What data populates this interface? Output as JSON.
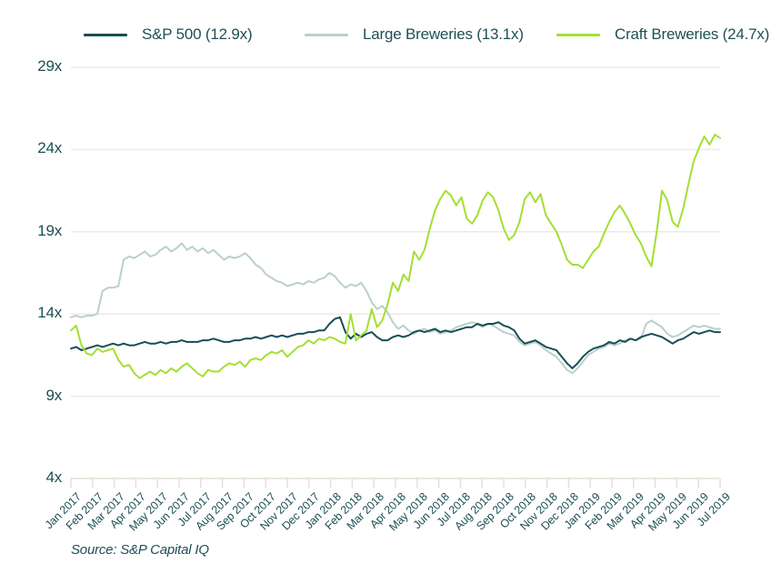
{
  "source": "Source: S&P Capital IQ",
  "colors": {
    "background": "#ffffff",
    "text": "#1d4f56",
    "sp500_line": "#164e57",
    "large_breweries_line": "#bad0cb",
    "craft_breweries_line": "#a3df33",
    "gridline": "#edeae4",
    "axis": "#e5dfd4"
  },
  "chart_data": {
    "type": "line",
    "title": "",
    "xlabel": "",
    "ylabel": "",
    "grid": "horizontal",
    "legend_position": "top",
    "ylim": [
      4,
      29
    ],
    "y_ticks": [
      {
        "value": 29,
        "label": "29x"
      },
      {
        "value": 24,
        "label": "24x"
      },
      {
        "value": 19,
        "label": "19x"
      },
      {
        "value": 14,
        "label": "14x"
      },
      {
        "value": 9,
        "label": "9x"
      },
      {
        "value": 4,
        "label": "4x"
      }
    ],
    "x_tick_labels": [
      "Jan 2017",
      "Feb 2017",
      "Mar 2017",
      "Apr 2017",
      "May 2017",
      "Jun 2017",
      "Jul 2017",
      "Aug 2017",
      "Sep 2017",
      "Oct 2017",
      "Nov 2017",
      "Dec 2017",
      "Jan 2018",
      "Feb 2018",
      "Mar 2018",
      "Apr 2018",
      "May 2018",
      "Jun 2018",
      "Jul 2018",
      "Aug 2018",
      "Sep 2018",
      "Oct 2018",
      "Nov 2018",
      "Dec 2018",
      "Jan 2019",
      "Feb 2019",
      "Mar 2019",
      "Apr 2019",
      "May 2019",
      "Jun 2019",
      "Jul 2019"
    ],
    "points_per_month": 4,
    "series": [
      {
        "name": "S&P 500 (12.9x)",
        "current_multiple": "12.9x",
        "color": "#164e57",
        "values": [
          11.9,
          12.0,
          11.8,
          11.9,
          12.0,
          12.1,
          12.0,
          12.1,
          12.2,
          12.1,
          12.2,
          12.1,
          12.1,
          12.2,
          12.3,
          12.2,
          12.2,
          12.3,
          12.2,
          12.3,
          12.3,
          12.4,
          12.3,
          12.3,
          12.3,
          12.4,
          12.4,
          12.5,
          12.4,
          12.3,
          12.3,
          12.4,
          12.4,
          12.5,
          12.5,
          12.6,
          12.5,
          12.6,
          12.7,
          12.6,
          12.7,
          12.6,
          12.7,
          12.8,
          12.8,
          12.9,
          12.9,
          13.0,
          13.0,
          13.4,
          13.7,
          13.8,
          12.9,
          12.5,
          12.8,
          12.6,
          12.8,
          12.9,
          12.6,
          12.4,
          12.4,
          12.6,
          12.7,
          12.6,
          12.7,
          12.9,
          13.0,
          12.9,
          13.0,
          13.1,
          12.9,
          13.0,
          12.9,
          13.0,
          13.1,
          13.2,
          13.2,
          13.4,
          13.3,
          13.4,
          13.4,
          13.5,
          13.3,
          13.2,
          13.0,
          12.5,
          12.2,
          12.3,
          12.4,
          12.2,
          12.0,
          11.9,
          11.8,
          11.4,
          11.0,
          10.7,
          11.0,
          11.4,
          11.7,
          11.9,
          12.0,
          12.1,
          12.3,
          12.2,
          12.4,
          12.3,
          12.5,
          12.4,
          12.6,
          12.7,
          12.8,
          12.7,
          12.6,
          12.4,
          12.2,
          12.4,
          12.5,
          12.7,
          12.9,
          12.8,
          12.9,
          13.0,
          12.9,
          12.9
        ]
      },
      {
        "name": "Large Breweries (13.1x)",
        "current_multiple": "13.1x",
        "color": "#bad0cb",
        "values": [
          13.8,
          13.9,
          13.8,
          13.9,
          13.9,
          14.0,
          15.4,
          15.6,
          15.6,
          15.7,
          17.3,
          17.5,
          17.4,
          17.6,
          17.8,
          17.5,
          17.6,
          17.9,
          18.1,
          17.8,
          18.0,
          18.3,
          17.9,
          18.1,
          17.8,
          18.0,
          17.7,
          17.9,
          17.6,
          17.3,
          17.5,
          17.4,
          17.5,
          17.7,
          17.4,
          17.0,
          16.8,
          16.4,
          16.2,
          16.0,
          15.9,
          15.7,
          15.8,
          15.9,
          15.8,
          16.0,
          15.9,
          16.1,
          16.2,
          16.5,
          16.3,
          15.9,
          15.6,
          15.8,
          15.7,
          15.9,
          15.4,
          14.7,
          14.3,
          14.5,
          14.1,
          13.5,
          13.1,
          13.3,
          13.0,
          12.8,
          13.0,
          13.1,
          12.9,
          13.0,
          12.8,
          12.9,
          13.0,
          13.2,
          13.3,
          13.4,
          13.5,
          13.4,
          13.2,
          13.4,
          13.3,
          13.1,
          12.9,
          12.8,
          12.7,
          12.3,
          12.1,
          12.2,
          12.3,
          12.1,
          11.8,
          11.6,
          11.4,
          11.0,
          10.6,
          10.4,
          10.7,
          11.1,
          11.5,
          11.7,
          11.9,
          12.0,
          12.2,
          12.1,
          12.2,
          12.4,
          12.5,
          12.4,
          12.5,
          13.4,
          13.6,
          13.4,
          13.2,
          12.8,
          12.6,
          12.7,
          12.9,
          13.1,
          13.3,
          13.2,
          13.3,
          13.2,
          13.1,
          13.1
        ]
      },
      {
        "name": "Craft Breweries (24.7x)",
        "current_multiple": "24.7x",
        "color": "#a3df33",
        "values": [
          13.0,
          13.3,
          12.1,
          11.6,
          11.5,
          11.9,
          11.7,
          11.8,
          11.9,
          11.2,
          10.8,
          10.9,
          10.4,
          10.1,
          10.3,
          10.5,
          10.3,
          10.6,
          10.4,
          10.7,
          10.5,
          10.8,
          11.0,
          10.7,
          10.4,
          10.2,
          10.6,
          10.5,
          10.5,
          10.8,
          11.0,
          10.9,
          11.1,
          10.8,
          11.2,
          11.3,
          11.2,
          11.5,
          11.7,
          11.6,
          11.8,
          11.4,
          11.7,
          12.0,
          12.1,
          12.4,
          12.2,
          12.5,
          12.4,
          12.6,
          12.5,
          12.3,
          12.2,
          14.0,
          12.4,
          12.7,
          13.0,
          14.3,
          13.2,
          13.6,
          14.6,
          15.9,
          15.4,
          16.4,
          16.0,
          17.8,
          17.3,
          17.9,
          19.2,
          20.3,
          21.0,
          21.5,
          21.2,
          20.6,
          21.1,
          19.8,
          19.5,
          20.0,
          20.9,
          21.4,
          21.1,
          20.3,
          19.2,
          18.5,
          18.8,
          19.6,
          21.0,
          21.4,
          20.8,
          21.3,
          20.0,
          19.5,
          19.0,
          18.2,
          17.3,
          17.0,
          17.0,
          16.8,
          17.3,
          17.8,
          18.1,
          18.9,
          19.6,
          20.2,
          20.6,
          20.1,
          19.5,
          18.8,
          18.3,
          17.5,
          16.9,
          19.0,
          21.5,
          20.9,
          19.6,
          19.3,
          20.4,
          21.9,
          23.3,
          24.1,
          24.8,
          24.3,
          24.9,
          24.7
        ]
      }
    ]
  }
}
